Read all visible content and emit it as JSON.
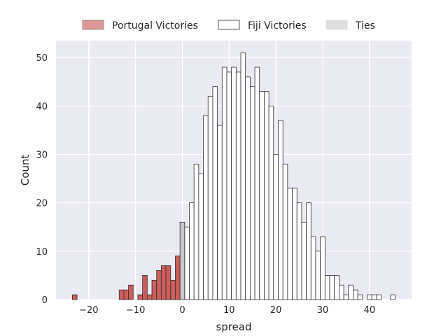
{
  "chart_data": {
    "type": "bar",
    "xlabel": "spread",
    "ylabel": "Count",
    "xlim": [
      -27,
      49
    ],
    "ylim": [
      0,
      53.5
    ],
    "x_ticks": [
      -20,
      -10,
      0,
      10,
      20,
      30,
      40
    ],
    "y_ticks": [
      0,
      10,
      20,
      30,
      40,
      50
    ],
    "grid": true,
    "legend_position": "top-center",
    "bin_width": 1,
    "colors": {
      "background": "#eaeaf2",
      "grid": "#ffffff",
      "portugal": "#cd5c5c",
      "fiji": "#ffffff",
      "ties": "#c8c8c8",
      "edge": "#333333"
    },
    "legend": [
      {
        "label": "Portugal Victories",
        "swatch": "#e09898",
        "edge": "#8c8c8c"
      },
      {
        "label": "Fiji Victories",
        "swatch": "#ffffff",
        "edge": "#555555"
      },
      {
        "label": "Ties",
        "swatch": "#dedede",
        "edge": "#dedede"
      }
    ],
    "series": [
      {
        "name": "Portugal Victories",
        "x": [
          -23,
          -13,
          -12,
          -11,
          -9,
          -8,
          -7,
          -6,
          -5,
          -4,
          -3,
          -2,
          -1
        ],
        "values": [
          1,
          2,
          2,
          3,
          1,
          5,
          1,
          4,
          6,
          7,
          7,
          4,
          9
        ]
      },
      {
        "name": "Fiji Victories",
        "x": [
          1,
          2,
          3,
          4,
          5,
          6,
          7,
          8,
          9,
          10,
          11,
          12,
          13,
          14,
          15,
          16,
          17,
          18,
          19,
          20,
          21,
          22,
          23,
          24,
          25,
          26,
          27,
          28,
          29,
          30,
          31,
          32,
          33,
          34,
          35,
          36,
          37,
          38,
          39,
          40,
          41,
          42,
          43,
          44,
          45
        ],
        "values": [
          15,
          20,
          28,
          26,
          38,
          42,
          44,
          36,
          48,
          47,
          48,
          47,
          51,
          46,
          44,
          48,
          43,
          43,
          40,
          30,
          37,
          28,
          23,
          23,
          20,
          16,
          20,
          13,
          10,
          13,
          5,
          5,
          5,
          3,
          1,
          3,
          2,
          1,
          0,
          1,
          1,
          1,
          0,
          0,
          1
        ]
      },
      {
        "name": "Ties",
        "x": [
          0
        ],
        "values": [
          16
        ]
      }
    ]
  }
}
